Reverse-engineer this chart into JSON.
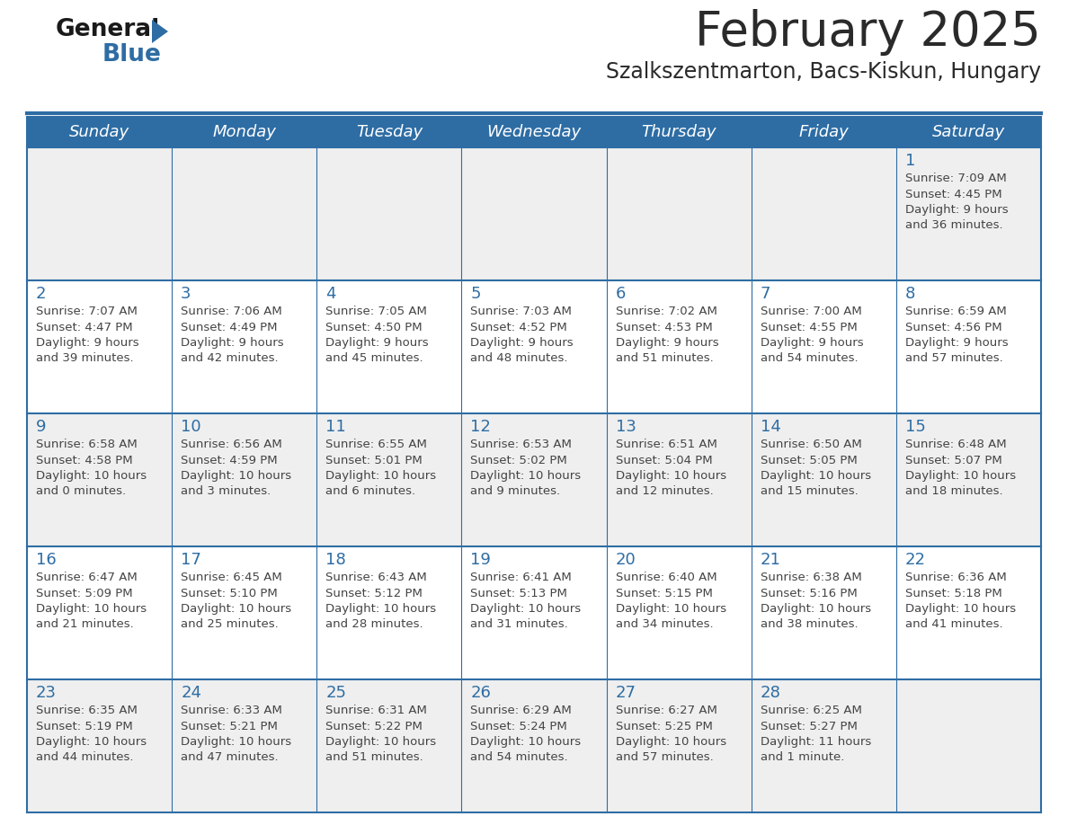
{
  "title": "February 2025",
  "subtitle": "Szalkszentmarton, Bacs-Kiskun, Hungary",
  "days_of_week": [
    "Sunday",
    "Monday",
    "Tuesday",
    "Wednesday",
    "Thursday",
    "Friday",
    "Saturday"
  ],
  "header_bg": "#2E6DA4",
  "header_text": "#FFFFFF",
  "cell_bg_odd": "#EFEFEF",
  "cell_bg_even": "#FFFFFF",
  "border_color": "#2E6DA4",
  "text_color": "#444444",
  "day_number_color": "#2E6DA4",
  "logo_general_color": "#1a1a1a",
  "logo_blue_color": "#2E6DA4",
  "calendar_data": [
    [
      null,
      null,
      null,
      null,
      null,
      null,
      {
        "day": 1,
        "sunrise": "7:09 AM",
        "sunset": "4:45 PM",
        "daylight": "9 hours and 36 minutes."
      }
    ],
    [
      {
        "day": 2,
        "sunrise": "7:07 AM",
        "sunset": "4:47 PM",
        "daylight": "9 hours and 39 minutes."
      },
      {
        "day": 3,
        "sunrise": "7:06 AM",
        "sunset": "4:49 PM",
        "daylight": "9 hours and 42 minutes."
      },
      {
        "day": 4,
        "sunrise": "7:05 AM",
        "sunset": "4:50 PM",
        "daylight": "9 hours and 45 minutes."
      },
      {
        "day": 5,
        "sunrise": "7:03 AM",
        "sunset": "4:52 PM",
        "daylight": "9 hours and 48 minutes."
      },
      {
        "day": 6,
        "sunrise": "7:02 AM",
        "sunset": "4:53 PM",
        "daylight": "9 hours and 51 minutes."
      },
      {
        "day": 7,
        "sunrise": "7:00 AM",
        "sunset": "4:55 PM",
        "daylight": "9 hours and 54 minutes."
      },
      {
        "day": 8,
        "sunrise": "6:59 AM",
        "sunset": "4:56 PM",
        "daylight": "9 hours and 57 minutes."
      }
    ],
    [
      {
        "day": 9,
        "sunrise": "6:58 AM",
        "sunset": "4:58 PM",
        "daylight": "10 hours and 0 minutes."
      },
      {
        "day": 10,
        "sunrise": "6:56 AM",
        "sunset": "4:59 PM",
        "daylight": "10 hours and 3 minutes."
      },
      {
        "day": 11,
        "sunrise": "6:55 AM",
        "sunset": "5:01 PM",
        "daylight": "10 hours and 6 minutes."
      },
      {
        "day": 12,
        "sunrise": "6:53 AM",
        "sunset": "5:02 PM",
        "daylight": "10 hours and 9 minutes."
      },
      {
        "day": 13,
        "sunrise": "6:51 AM",
        "sunset": "5:04 PM",
        "daylight": "10 hours and 12 minutes."
      },
      {
        "day": 14,
        "sunrise": "6:50 AM",
        "sunset": "5:05 PM",
        "daylight": "10 hours and 15 minutes."
      },
      {
        "day": 15,
        "sunrise": "6:48 AM",
        "sunset": "5:07 PM",
        "daylight": "10 hours and 18 minutes."
      }
    ],
    [
      {
        "day": 16,
        "sunrise": "6:47 AM",
        "sunset": "5:09 PM",
        "daylight": "10 hours and 21 minutes."
      },
      {
        "day": 17,
        "sunrise": "6:45 AM",
        "sunset": "5:10 PM",
        "daylight": "10 hours and 25 minutes."
      },
      {
        "day": 18,
        "sunrise": "6:43 AM",
        "sunset": "5:12 PM",
        "daylight": "10 hours and 28 minutes."
      },
      {
        "day": 19,
        "sunrise": "6:41 AM",
        "sunset": "5:13 PM",
        "daylight": "10 hours and 31 minutes."
      },
      {
        "day": 20,
        "sunrise": "6:40 AM",
        "sunset": "5:15 PM",
        "daylight": "10 hours and 34 minutes."
      },
      {
        "day": 21,
        "sunrise": "6:38 AM",
        "sunset": "5:16 PM",
        "daylight": "10 hours and 38 minutes."
      },
      {
        "day": 22,
        "sunrise": "6:36 AM",
        "sunset": "5:18 PM",
        "daylight": "10 hours and 41 minutes."
      }
    ],
    [
      {
        "day": 23,
        "sunrise": "6:35 AM",
        "sunset": "5:19 PM",
        "daylight": "10 hours and 44 minutes."
      },
      {
        "day": 24,
        "sunrise": "6:33 AM",
        "sunset": "5:21 PM",
        "daylight": "10 hours and 47 minutes."
      },
      {
        "day": 25,
        "sunrise": "6:31 AM",
        "sunset": "5:22 PM",
        "daylight": "10 hours and 51 minutes."
      },
      {
        "day": 26,
        "sunrise": "6:29 AM",
        "sunset": "5:24 PM",
        "daylight": "10 hours and 54 minutes."
      },
      {
        "day": 27,
        "sunrise": "6:27 AM",
        "sunset": "5:25 PM",
        "daylight": "10 hours and 57 minutes."
      },
      {
        "day": 28,
        "sunrise": "6:25 AM",
        "sunset": "5:27 PM",
        "daylight": "11 hours and 1 minute."
      },
      null
    ]
  ]
}
